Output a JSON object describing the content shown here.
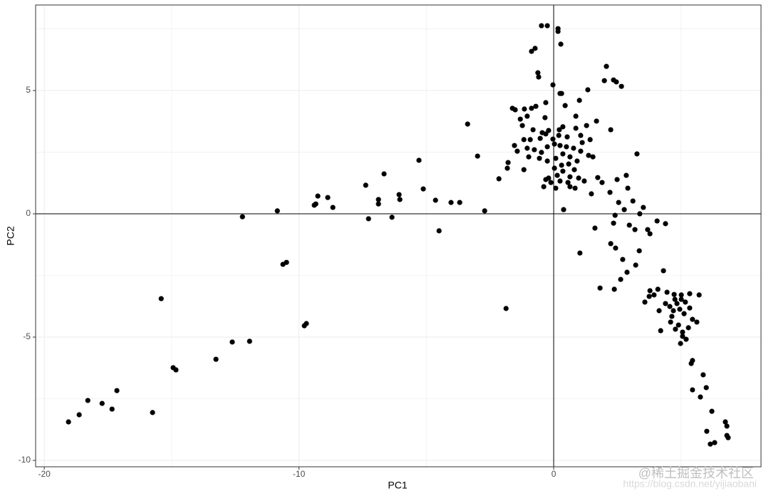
{
  "chart_data": {
    "type": "scatter",
    "xlabel": "PC1",
    "ylabel": "PC2",
    "xlim": [
      -20.34,
      8.14
    ],
    "ylim": [
      -10.26,
      8.47
    ],
    "xticks": [
      -20,
      -10,
      0
    ],
    "yticks": [
      -10,
      -5,
      0,
      5
    ],
    "x_minor_ticks": [
      -15,
      -5,
      5
    ],
    "y_minor_ticks": [
      -7.5,
      -2.5,
      2.5,
      7.5
    ],
    "grid": true,
    "hlines": [
      0
    ],
    "vlines": [
      0
    ],
    "color": "#000000",
    "x": [
      -19.05,
      -18.63,
      -18.29,
      -17.73,
      -17.34,
      -17.15,
      -15.75,
      -15.41,
      -14.94,
      -14.83,
      -13.26,
      -12.62,
      -11.94,
      -12.22,
      -10.85,
      -10.63,
      -10.49,
      -9.79,
      -9.71,
      -9.4,
      -9.34,
      -9.26,
      -8.87,
      -8.67,
      -7.38,
      -7.27,
      -6.88,
      -6.88,
      -6.66,
      -6.35,
      -6.07,
      -6.04,
      -5.29,
      -5.12,
      -4.64,
      -4.5,
      -4.03,
      -3.69,
      -3.38,
      -2.99,
      -2.71,
      -2.15,
      -1.87,
      -1.82,
      -1.79,
      -0.48,
      -0.25,
      0.17,
      0.17,
      0.28,
      -0.87,
      -0.73,
      -0.62,
      -0.59,
      -0.03,
      2.07,
      1.99,
      2.35,
      2.46,
      2.66,
      0.25,
      0.31,
      1.34,
      -0.31,
      -1.62,
      -1.51,
      -1.15,
      -0.87,
      -0.7,
      -0.34,
      0.45,
      1.01,
      0.87,
      1.68,
      2.24,
      -1.31,
      -1.04,
      -1.23,
      -0.81,
      -0.45,
      -0.2,
      0.22,
      0.36,
      0.87,
      1.06,
      1.29,
      -1.17,
      -0.92,
      -0.53,
      -0.31,
      -0.03,
      0.2,
      0.53,
      1.12,
      1.43,
      -1.54,
      -1.43,
      -1.04,
      -0.76,
      -0.48,
      -0.25,
      0.03,
      0.25,
      0.5,
      0.78,
      1.06,
      1.37,
      1.54,
      3.27,
      -0.98,
      -0.56,
      -0.25,
      0.08,
      0.36,
      0.64,
      0.31,
      0.59,
      0.92,
      -1.17,
      0.03,
      0.36,
      0.81,
      -0.2,
      0.14,
      0.64,
      -0.31,
      -0.11,
      0.25,
      0.56,
      0.98,
      1.73,
      1.2,
      -0.39,
      0.08,
      0.64,
      0.84,
      1.48,
      1.9,
      2.21,
      2.49,
      2.85,
      2.91,
      0.39,
      2.55,
      2.77,
      3.11,
      3.52,
      3.38,
      2.41,
      2.35,
      1.62,
      2.97,
      3.19,
      3.69,
      4.06,
      4.39,
      3.78,
      2.24,
      2.43,
      1.03,
      3.36,
      2.71,
      3.22,
      4.31,
      2.88,
      2.63,
      1.82,
      2.38,
      3.78,
      4.09,
      4.45,
      4.73,
      5.01,
      3.75,
      3.94,
      4.76,
      4.84,
      5.01,
      5.17,
      5.71,
      5.34,
      3.58,
      4.39,
      4.56,
      4.7,
      4.95,
      5.12,
      5.34,
      5.45,
      5.62,
      4.14,
      4.2,
      4.59,
      4.78,
      4.9,
      5.06,
      5.06,
      4.98,
      5.2,
      4.64,
      5.29,
      5.45,
      5.4,
      5.87,
      5.99,
      5.45,
      5.76,
      6.21,
      6.74,
      6.8,
      6.01,
      6.8,
      6.85,
      6.32,
      6.15
    ],
    "y": [
      -8.44,
      -8.15,
      -7.57,
      -7.69,
      -7.92,
      -7.17,
      -8.06,
      -3.44,
      -6.24,
      -6.33,
      -5.9,
      -5.2,
      -5.17,
      -0.12,
      0.12,
      -2.05,
      -1.97,
      -4.54,
      -4.45,
      0.35,
      0.4,
      0.72,
      0.66,
      0.26,
      1.16,
      -0.2,
      0.58,
      0.4,
      1.62,
      -0.14,
      0.78,
      0.58,
      2.17,
      1.01,
      0.55,
      -0.69,
      0.46,
      0.46,
      3.64,
      2.34,
      0.12,
      1.42,
      -3.84,
      1.85,
      2.08,
      7.63,
      7.63,
      7.51,
      7.4,
      6.88,
      6.59,
      6.71,
      5.72,
      5.55,
      5.23,
      5.98,
      5.4,
      5.43,
      5.35,
      5.17,
      4.88,
      4.88,
      5.03,
      4.51,
      4.28,
      4.22,
      4.25,
      4.28,
      4.36,
      3.9,
      4.39,
      4.6,
      3.96,
      3.76,
      3.41,
      3.84,
      3.96,
      3.58,
      3.41,
      3.29,
      3.38,
      3.41,
      3.53,
      3.47,
      3.18,
      3.58,
      3.01,
      3.01,
      3.06,
      3.24,
      3.03,
      3.18,
      3.12,
      2.89,
      3.01,
      2.77,
      2.54,
      2.66,
      2.6,
      2.49,
      2.72,
      2.83,
      2.77,
      2.72,
      2.66,
      2.54,
      2.37,
      2.31,
      2.43,
      2.31,
      2.25,
      2.14,
      2.25,
      2.43,
      2.31,
      1.97,
      2.02,
      2.14,
      1.79,
      1.85,
      1.73,
      1.79,
      1.45,
      1.56,
      1.5,
      1.39,
      1.27,
      1.33,
      1.27,
      1.45,
      1.47,
      1.33,
      1.1,
      1.04,
      1.1,
      1.04,
      0.81,
      1.27,
      0.87,
      1.39,
      1.56,
      1.04,
      0.17,
      0.46,
      0.17,
      0.52,
      0.26,
      0,
      -0.06,
      -0.38,
      -0.58,
      -0.46,
      -0.64,
      -0.64,
      -0.29,
      -0.4,
      -0.81,
      -1.21,
      -1.39,
      -1.59,
      -1.5,
      -1.85,
      -2.08,
      -2.31,
      -2.37,
      -2.66,
      -3.01,
      -3.06,
      -3.12,
      -3.06,
      -3.18,
      -3.27,
      -3.29,
      -3.35,
      -3.29,
      -3.47,
      -3.64,
      -3.47,
      -3.58,
      -3.29,
      -3.24,
      -3.58,
      -3.64,
      -3.76,
      -3.93,
      -3.87,
      -4.05,
      -3.82,
      -4.28,
      -4.39,
      -3.93,
      -4.74,
      -4.39,
      -4.68,
      -4.51,
      -4.8,
      -4.97,
      -5.26,
      -5.09,
      -4.16,
      -4.62,
      -5.95,
      -6.07,
      -6.53,
      -7.05,
      -7.14,
      -7.43,
      -8.01,
      -8.44,
      -8.61,
      -8.82,
      -8.99,
      -9.08,
      -9.28,
      -9.34
    ]
  },
  "watermark": {
    "url": "https://blog.csdn.net/yijiaobani",
    "site": "@稀土掘金技术社区"
  }
}
